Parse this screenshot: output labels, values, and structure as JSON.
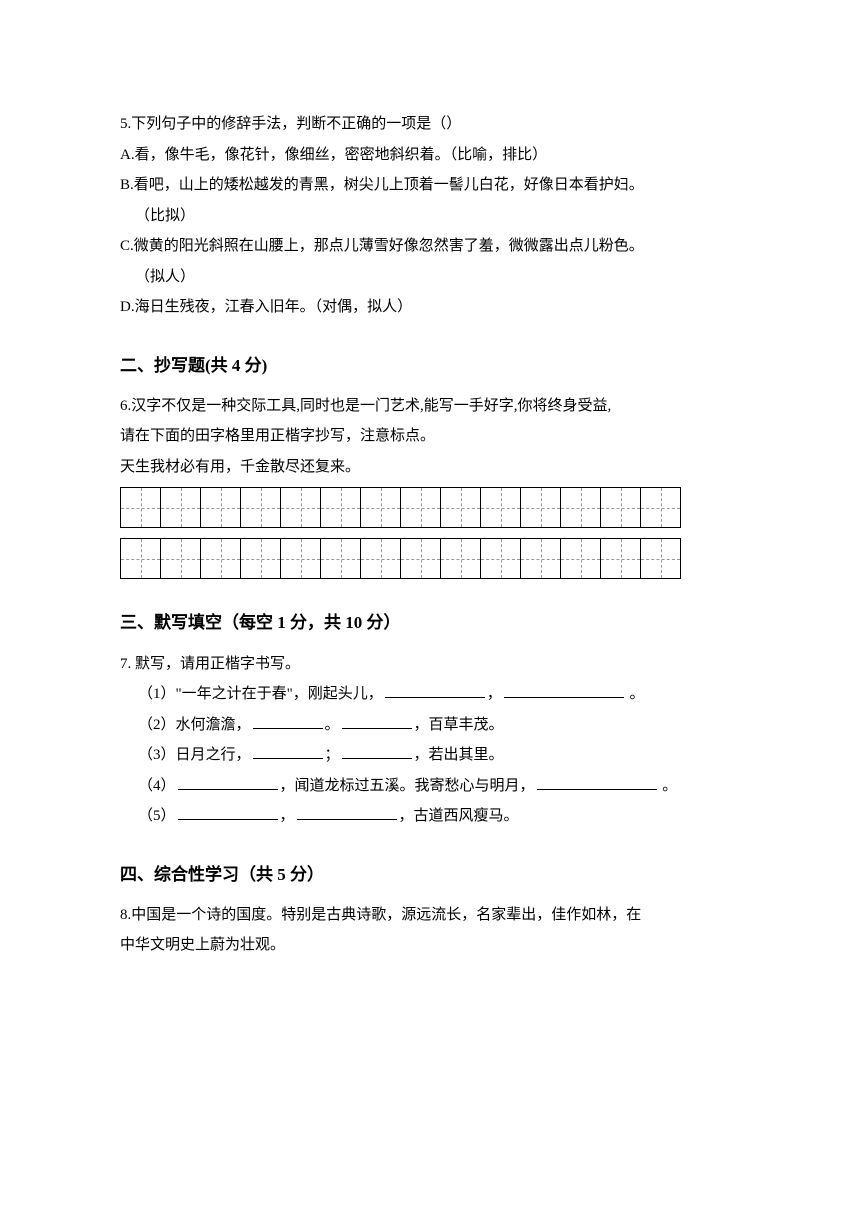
{
  "q5": {
    "stem": "5.下列句子中的修辞手法，判断不正确的一项是（）",
    "A": "A.看，像牛毛，像花针，像细丝，密密地斜织着。（比喻，排比）",
    "B": "B.看吧，山上的矮松越发的青黑，树尖儿上顶着一髻儿白花，好像日本看护妇。",
    "B_note": "（比拟）",
    "C": "C.微黄的阳光斜照在山腰上，那点儿薄雪好像忽然害了羞，微微露出点儿粉色。",
    "C_note": "（拟人）",
    "D": "D.海日生残夜，江春入旧年。（对偶，拟人）"
  },
  "section2": {
    "title": "二、抄写题(共 4 分)",
    "q6_line1": "6.汉字不仅是一种交际工具,同时也是一门艺术,能写一手好字,你将终身受益,",
    "q6_line2": "请在下面的田字格里用正楷字抄写，注意标点。",
    "q6_text": "天生我材必有用，千金散尽还复来。",
    "grid_cols": 14,
    "grid_rows": 2
  },
  "section3": {
    "title": "三、默写填空（每空 1 分，共 10 分）",
    "q7_stem": "7. 默写，请用正楷字书写。",
    "fill1_a": "（1）\"一年之计在于春\"，刚起头儿，",
    "fill1_b": "，",
    "fill1_c": " 。",
    "fill2_a": "（2）水何澹澹，",
    "fill2_b": "。",
    "fill2_c": "，百草丰茂。",
    "fill3_a": "（3）日月之行，",
    "fill3_b": "；",
    "fill3_c": "，若出其里。",
    "fill4_a": "（4）",
    "fill4_b": "，闻道龙标过五溪。我寄愁心与明月，",
    "fill4_c": " 。",
    "fill5_a": "（5）",
    "fill5_b": "，",
    "fill5_c": "，古道西风瘦马。"
  },
  "section4": {
    "title": "四、综合性学习（共 5 分）",
    "q8_line1": "8.中国是一个诗的国度。特别是古典诗歌，源远流长，名家辈出，佳作如林，在",
    "q8_line2": "中华文明史上蔚为壮观。"
  }
}
